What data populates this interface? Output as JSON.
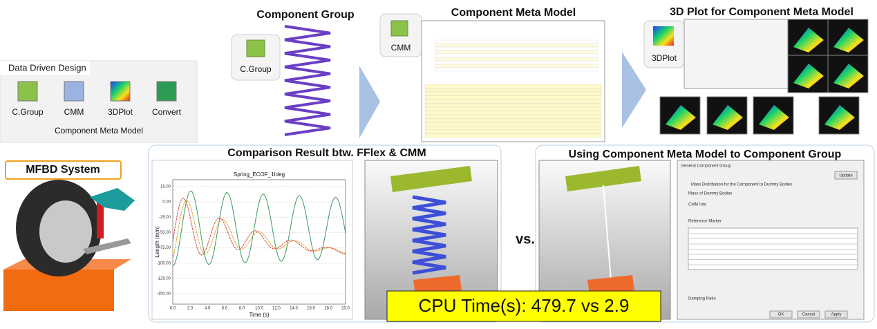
{
  "ribbon": {
    "title": "Data Driven Design",
    "buttons": [
      "C.Group",
      "CMM",
      "3DPlot",
      "Convert"
    ],
    "group_label": "Component Meta Model"
  },
  "mfbd": {
    "label": "MFBD System"
  },
  "panels": {
    "component_group": {
      "title": "Component Group",
      "icon": "C.Group"
    },
    "cmm": {
      "title": "Component Meta Model",
      "icon": "CMM"
    },
    "plot3d": {
      "title": "3D Plot for Component Meta Model",
      "icon": "3DPlot"
    },
    "comparison": {
      "title": "Comparison Result btw. FFlex & CMM",
      "plot_title": "Spring_ECOF_1Ideg",
      "x_label": "Time (s)",
      "y_label": "Length (mm)",
      "x_ticks": [
        "0.0",
        "2.0",
        "4.0",
        "6.0",
        "8.0",
        "10.0",
        "12.0",
        "14.0",
        "16.0",
        "18.0",
        "20.0"
      ],
      "y_ticks": [
        "15.00",
        "0.00",
        "-25.00",
        "-50.00",
        "-75.00",
        "-100.00",
        "-125.00",
        "-150.00"
      ]
    },
    "usage": {
      "title": "Using Component Meta Model to Component Group",
      "dialog": {
        "tabs": [
          "General",
          "Component Group"
        ],
        "update": "Update",
        "mass_distribution": "Mass Distribution for the Component to Dummy Bodies",
        "mass_label": "Mass of Dummy Bodies",
        "cmm_info": "CMM Info",
        "reference_marker": "Reference Marker",
        "damping_ratio": "Damping Ratio",
        "buttons": [
          "OK",
          "Cancel",
          "Apply"
        ]
      }
    }
  },
  "vs": "vs.",
  "cpu_time": "CPU Time(s): 479.7 vs 2.9"
}
